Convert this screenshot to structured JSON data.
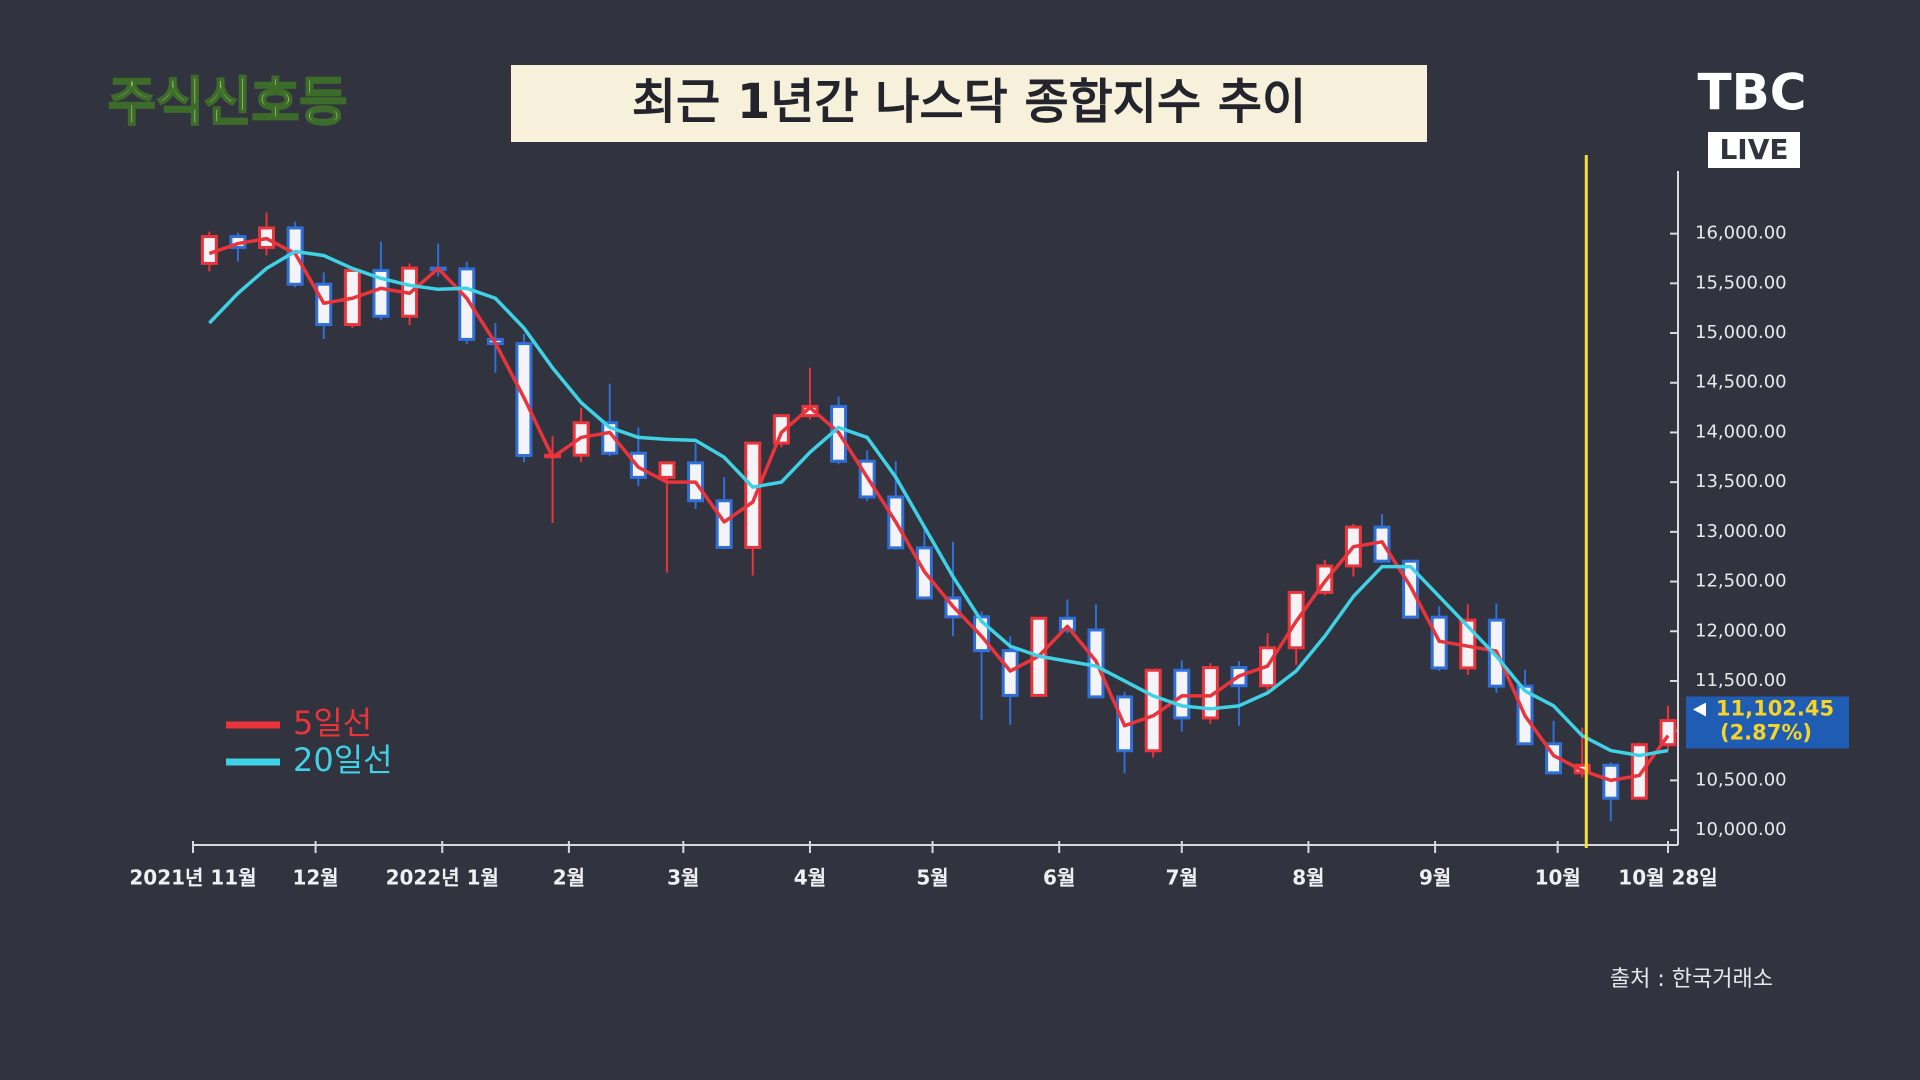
{
  "header": {
    "logo": "주식신호등",
    "broadcaster": "TBC",
    "live": "LIVE"
  },
  "chart_data": {
    "type": "candlestick",
    "title": "최근 1년간 나스닥 종합지수 추이",
    "x": [
      4,
      11,
      18,
      25,
      32,
      39,
      46,
      53,
      60,
      67,
      74,
      81,
      88,
      95,
      102,
      109,
      116,
      123,
      130,
      137,
      144,
      151,
      158,
      165,
      172,
      179,
      186,
      193,
      200,
      207,
      214,
      221,
      228,
      235,
      242,
      249,
      256,
      263,
      270,
      277,
      284,
      291,
      298,
      305,
      312,
      319,
      326,
      333,
      340,
      347,
      354,
      361
    ],
    "open": [
      15700,
      15971,
      15861,
      16057,
      15491,
      15085,
      15630,
      15169,
      15653,
      15645,
      14936,
      14894,
      13768,
      13771,
      14098,
      13791,
      13548,
      13694,
      13313,
      12843,
      13893,
      14169,
      14262,
      13711,
      13351,
      12839,
      12335,
      12145,
      11805,
      11355,
      12131,
      12013,
      11340,
      10798,
      11608,
      11128,
      11635,
      11452,
      11834,
      12391,
      12657,
      13048,
      12705,
      12142,
      11631,
      12112,
      11448,
      10868,
      10576,
      10652,
      10321,
      10859
    ],
    "high": [
      16020,
      16010,
      16212,
      16120,
      15610,
      15660,
      15920,
      15700,
      15900,
      15720,
      15100,
      14990,
      13960,
      14250,
      14490,
      14050,
      13710,
      13890,
      13550,
      13900,
      14180,
      14650,
      14360,
      13820,
      13710,
      13060,
      12900,
      12200,
      11950,
      12140,
      12320,
      12270,
      11390,
      11610,
      11710,
      11680,
      11700,
      11980,
      12400,
      12720,
      13080,
      13180,
      12720,
      12250,
      12270,
      12280,
      11610,
      11100,
      11030,
      10680,
      10880,
      11250
    ],
    "low": [
      15620,
      15720,
      15780,
      15460,
      14940,
      15050,
      15130,
      15080,
      15570,
      14890,
      14600,
      13700,
      13090,
      13700,
      13760,
      13460,
      12590,
      13230,
      12830,
      12560,
      13850,
      14130,
      13680,
      13310,
      12820,
      12320,
      11950,
      11110,
      11060,
      11340,
      11980,
      11330,
      10570,
      10730,
      10990,
      11070,
      11050,
      11400,
      11660,
      12360,
      12550,
      12690,
      12130,
      11600,
      11560,
      11380,
      10860,
      10560,
      10530,
      10090,
      10320,
      10800
    ],
    "close": [
      15971,
      15861,
      16057,
      15491,
      15085,
      15630,
      15169,
      15653,
      15645,
      14936,
      14894,
      13768,
      13771,
      14098,
      13791,
      13548,
      13694,
      13313,
      12843,
      13893,
      14169,
      14262,
      13711,
      13351,
      12839,
      12335,
      12145,
      11805,
      11355,
      12131,
      12013,
      11340,
      10798,
      11608,
      11128,
      11635,
      11452,
      11834,
      12391,
      12657,
      13048,
      12705,
      12142,
      11631,
      12112,
      11448,
      10868,
      10576,
      10652,
      10321,
      10859,
      11102
    ],
    "up_color": "#e8343a",
    "down_color": "#2f6fd6",
    "series": [
      {
        "name": "5일선",
        "color": "#e8343a",
        "values": [
          15800,
          15900,
          15950,
          15800,
          15300,
          15350,
          15450,
          15400,
          15650,
          15350,
          14900,
          14350,
          13750,
          13950,
          14000,
          13650,
          13500,
          13500,
          13100,
          13300,
          14000,
          14250,
          14000,
          13550,
          13100,
          12600,
          12250,
          11950,
          11600,
          11750,
          12050,
          11700,
          11050,
          11150,
          11350,
          11350,
          11550,
          11650,
          12100,
          12500,
          12850,
          12900,
          12450,
          11900,
          11850,
          11800,
          11150,
          10750,
          10600,
          10500,
          10550,
          10950
        ]
      },
      {
        "name": "20일선",
        "color": "#3fd2e6",
        "values": [
          15100,
          15400,
          15650,
          15820,
          15780,
          15650,
          15550,
          15480,
          15440,
          15450,
          15350,
          15050,
          14650,
          14300,
          14050,
          13950,
          13930,
          13920,
          13750,
          13450,
          13500,
          13800,
          14050,
          13950,
          13550,
          13050,
          12550,
          12100,
          11850,
          11750,
          11700,
          11650,
          11500,
          11350,
          11250,
          11220,
          11250,
          11380,
          11600,
          11950,
          12350,
          12650,
          12650,
          12350,
          12050,
          11750,
          11400,
          11250,
          10950,
          10800,
          10750,
          10800
        ]
      }
    ],
    "xlim": [
      0,
      361
    ],
    "xticks": [
      {
        "value": 0,
        "label": "2021년 11월"
      },
      {
        "value": 30,
        "label": "12월"
      },
      {
        "value": 61,
        "label": "2022년 1월"
      },
      {
        "value": 92,
        "label": "2월"
      },
      {
        "value": 120,
        "label": "3월"
      },
      {
        "value": 151,
        "label": "4월"
      },
      {
        "value": 181,
        "label": "5월"
      },
      {
        "value": 212,
        "label": "6월"
      },
      {
        "value": 242,
        "label": "7월"
      },
      {
        "value": 273,
        "label": "8월"
      },
      {
        "value": 304,
        "label": "9월"
      },
      {
        "value": 334,
        "label": "10월"
      },
      {
        "value": 361,
        "label": "10월 28일"
      }
    ],
    "ylim": [
      9850,
      16630
    ],
    "yticks": [
      {
        "value": 10000,
        "label": "10,000.00"
      },
      {
        "value": 10500,
        "label": "10,500.00"
      },
      {
        "value": 11000,
        "label": "11,000.00"
      },
      {
        "value": 11500,
        "label": "11,500.00"
      },
      {
        "value": 12000,
        "label": "12,000.00"
      },
      {
        "value": 12500,
        "label": "12,500.00"
      },
      {
        "value": 13000,
        "label": "13,000.00"
      },
      {
        "value": 13500,
        "label": "13,500.00"
      },
      {
        "value": 14000,
        "label": "14,000.00"
      },
      {
        "value": 14500,
        "label": "14,500.00"
      },
      {
        "value": 15000,
        "label": "15,000.00"
      },
      {
        "value": 15500,
        "label": "15,500.00"
      },
      {
        "value": 16000,
        "label": "16,000.00"
      }
    ],
    "last_value": {
      "value": 11102.45,
      "label": "11,102.45",
      "change": "(2.87%)"
    },
    "highlight_x": 341,
    "highlight_color": "#f2e03a",
    "source": "출처 : 한국거래소"
  }
}
